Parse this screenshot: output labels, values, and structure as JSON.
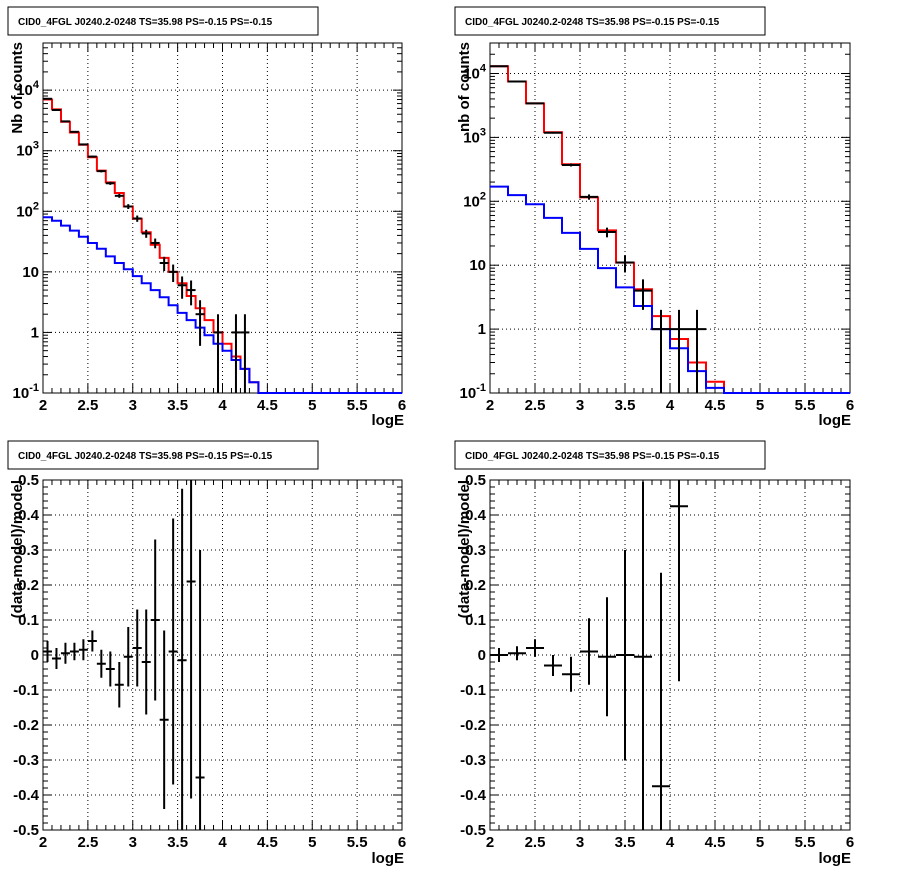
{
  "chart_data": [
    {
      "type": "line",
      "title": "CID0_4FGL J0240.2-0248 TS=35.98 PS=-0.15 PS=-0.15",
      "xlabel": "logE",
      "ylabel": "Nb of counts",
      "xlim": [
        2,
        6
      ],
      "ylim": [
        0.1,
        60000
      ],
      "yscale": "log",
      "grid": true,
      "x_ticks": [
        "2",
        "2.5",
        "3",
        "3.5",
        "4",
        "4.5",
        "5",
        "5.5",
        "6"
      ],
      "y_ticks": [
        {
          "value": 0.1,
          "label": "10^-1"
        },
        {
          "value": 1,
          "label": "1"
        },
        {
          "value": 10,
          "label": "10"
        },
        {
          "value": 100,
          "label": "10^2"
        },
        {
          "value": 1000,
          "label": "10^3"
        },
        {
          "value": 10000,
          "label": "10^4"
        }
      ],
      "bin_edges": [
        2,
        2.1,
        2.2,
        2.3,
        2.4,
        2.5,
        2.6,
        2.7,
        2.8,
        2.9,
        3.0,
        3.1,
        3.2,
        3.3,
        3.4,
        3.5,
        3.6,
        3.7,
        3.8,
        3.9,
        4.0,
        4.1,
        4.2,
        4.3,
        4.4,
        4.5,
        4.6,
        4.7,
        4.8,
        4.9,
        5.0,
        5.1,
        5.2,
        5.3,
        5.4,
        5.5,
        5.6,
        5.7,
        5.8,
        5.9,
        6.0
      ],
      "series": [
        {
          "color": "#ff0000",
          "kind": "step",
          "values": [
            7000,
            4800,
            3000,
            2000,
            1250,
            780,
            470,
            300,
            200,
            120,
            75,
            45,
            28,
            17,
            10,
            6.5,
            4,
            2.5,
            1.6,
            1.0,
            0.65,
            0.4,
            0.25,
            0.15,
            0.1,
            0.1,
            0.1,
            0.1,
            0.1,
            0.1,
            0.1,
            0.1,
            0.1,
            0.1,
            0.1,
            0.1,
            0.1,
            0.1,
            0.1,
            0.1
          ]
        },
        {
          "color": "#0000ff",
          "kind": "step",
          "values": [
            80,
            70,
            58,
            48,
            38,
            30,
            24,
            18,
            14,
            11,
            8.5,
            6.5,
            5,
            3.8,
            2.8,
            2.1,
            1.6,
            1.2,
            0.9,
            0.65,
            0.5,
            0.35,
            0.25,
            0.15,
            0.1,
            0.1,
            0.1,
            0.1,
            0.1,
            0.1,
            0.1,
            0.1,
            0.1,
            0.1,
            0.1,
            0.1,
            0.1,
            0.1,
            0.1,
            0.1
          ]
        },
        {
          "color": "#000000",
          "kind": "errorbar",
          "points": [
            {
              "x": 2.05,
              "y": 7200,
              "err": 85
            },
            {
              "x": 2.15,
              "y": 4700,
              "err": 69
            },
            {
              "x": 2.25,
              "y": 3050,
              "err": 55
            },
            {
              "x": 2.35,
              "y": 2050,
              "err": 45
            },
            {
              "x": 2.45,
              "y": 1270,
              "err": 36
            },
            {
              "x": 2.55,
              "y": 800,
              "err": 28
            },
            {
              "x": 2.65,
              "y": 460,
              "err": 21
            },
            {
              "x": 2.75,
              "y": 290,
              "err": 17
            },
            {
              "x": 2.85,
              "y": 180,
              "err": 13
            },
            {
              "x": 2.95,
              "y": 120,
              "err": 11
            },
            {
              "x": 3.05,
              "y": 76,
              "err": 9
            },
            {
              "x": 3.15,
              "y": 43,
              "err": 6.5
            },
            {
              "x": 3.25,
              "y": 30,
              "err": 5.5
            },
            {
              "x": 3.35,
              "y": 14,
              "err": 3.7
            },
            {
              "x": 3.45,
              "y": 10,
              "err": 3.2
            },
            {
              "x": 3.55,
              "y": 6,
              "err": 2.4
            },
            {
              "x": 3.65,
              "y": 5,
              "err": 2.2
            },
            {
              "x": 3.75,
              "y": 2,
              "err": 1.4
            },
            {
              "x": 3.95,
              "y": 1,
              "err": 1
            },
            {
              "x": 4.15,
              "y": 1,
              "err": 1
            },
            {
              "x": 4.25,
              "y": 1,
              "err": 1
            }
          ]
        }
      ]
    },
    {
      "type": "line",
      "title": "CID0_4FGL J0240.2-0248 TS=35.98 PS=-0.15 PS=-0.15",
      "xlabel": "logE",
      "ylabel": "nb of counts",
      "xlim": [
        2,
        6
      ],
      "ylim": [
        0.1,
        30000
      ],
      "yscale": "log",
      "grid": true,
      "x_ticks": [
        "2",
        "2.5",
        "3",
        "3.5",
        "4",
        "4.5",
        "5",
        "5.5",
        "6"
      ],
      "y_ticks": [
        {
          "value": 0.1,
          "label": "10^-1"
        },
        {
          "value": 1,
          "label": "1"
        },
        {
          "value": 10,
          "label": "10"
        },
        {
          "value": 100,
          "label": "10^2"
        },
        {
          "value": 1000,
          "label": "10^3"
        },
        {
          "value": 10000,
          "label": "10^4"
        }
      ],
      "bin_edges": [
        2,
        2.2,
        2.4,
        2.6,
        2.8,
        3.0,
        3.2,
        3.4,
        3.6,
        3.8,
        4.0,
        4.2,
        4.4,
        4.6,
        4.8,
        5.0,
        5.2,
        5.4,
        5.6,
        5.8,
        6.0
      ],
      "series": [
        {
          "color": "#ff0000",
          "kind": "step",
          "values": [
            13000,
            7500,
            3400,
            1200,
            380,
            115,
            35,
            11,
            4.2,
            1.6,
            0.7,
            0.3,
            0.15,
            0.1,
            0.1,
            0.1,
            0.1,
            0.1,
            0.1,
            0.1
          ]
        },
        {
          "color": "#0000ff",
          "kind": "step",
          "values": [
            170,
            125,
            90,
            55,
            32,
            18,
            9,
            4.5,
            2.3,
            1.0,
            0.5,
            0.22,
            0.12,
            0.1,
            0.1,
            0.1,
            0.1,
            0.1,
            0.1,
            0.1
          ]
        },
        {
          "color": "#000000",
          "kind": "errorbar",
          "points": [
            {
              "x": 2.1,
              "y": 13000,
              "err": 114
            },
            {
              "x": 2.3,
              "y": 7500,
              "err": 87
            },
            {
              "x": 2.5,
              "y": 3400,
              "err": 58
            },
            {
              "x": 2.7,
              "y": 1180,
              "err": 34
            },
            {
              "x": 2.9,
              "y": 370,
              "err": 19
            },
            {
              "x": 3.1,
              "y": 117,
              "err": 11
            },
            {
              "x": 3.3,
              "y": 33,
              "err": 5.7
            },
            {
              "x": 3.5,
              "y": 11,
              "err": 3.3
            },
            {
              "x": 3.7,
              "y": 4,
              "err": 2
            },
            {
              "x": 3.9,
              "y": 1,
              "err": 1
            },
            {
              "x": 4.1,
              "y": 1,
              "err": 1
            },
            {
              "x": 4.3,
              "y": 1,
              "err": 1
            }
          ]
        }
      ]
    },
    {
      "type": "scatter",
      "title": "CID0_4FGL J0240.2-0248 TS=35.98 PS=-0.15 PS=-0.15",
      "xlabel": "logE",
      "ylabel": "(data-model)/model",
      "xlim": [
        2,
        6
      ],
      "ylim": [
        -0.5,
        0.5
      ],
      "grid": true,
      "x_ticks": [
        "2",
        "2.5",
        "3",
        "3.5",
        "4",
        "4.5",
        "5",
        "5.5",
        "6"
      ],
      "y_ticks": [
        "-0.5",
        "-0.4",
        "-0.3",
        "-0.2",
        "-0.1",
        "0",
        "0.1",
        "0.2",
        "0.3",
        "0.4",
        "0.5"
      ],
      "y_tick_values": [
        -0.5,
        -0.4,
        -0.3,
        -0.2,
        -0.1,
        0,
        0.1,
        0.2,
        0.3,
        0.4,
        0.5
      ],
      "points": [
        {
          "x": 2.05,
          "y": 0.01,
          "err": 0.03,
          "xerr": 0.05
        },
        {
          "x": 2.15,
          "y": -0.01,
          "err": 0.03,
          "xerr": 0.05
        },
        {
          "x": 2.25,
          "y": 0.005,
          "err": 0.03,
          "xerr": 0.05
        },
        {
          "x": 2.35,
          "y": 0.01,
          "err": 0.025,
          "xerr": 0.05
        },
        {
          "x": 2.45,
          "y": 0.015,
          "err": 0.03,
          "xerr": 0.05
        },
        {
          "x": 2.55,
          "y": 0.04,
          "err": 0.03,
          "xerr": 0.05
        },
        {
          "x": 2.65,
          "y": -0.025,
          "err": 0.04,
          "xerr": 0.05
        },
        {
          "x": 2.75,
          "y": -0.04,
          "err": 0.05,
          "xerr": 0.05
        },
        {
          "x": 2.85,
          "y": -0.085,
          "err": 0.065,
          "xerr": 0.05
        },
        {
          "x": 2.95,
          "y": -0.005,
          "err": 0.085,
          "xerr": 0.05
        },
        {
          "x": 3.05,
          "y": 0.02,
          "err": 0.11,
          "xerr": 0.05
        },
        {
          "x": 3.15,
          "y": -0.02,
          "err": 0.15,
          "xerr": 0.05
        },
        {
          "x": 3.25,
          "y": 0.1,
          "err": 0.23,
          "xerr": 0.05
        },
        {
          "x": 3.35,
          "y": -0.185,
          "err": 0.255,
          "xerr": 0.05
        },
        {
          "x": 3.45,
          "y": 0.01,
          "err": 0.38,
          "xerr": 0.05
        },
        {
          "x": 3.55,
          "y": -0.015,
          "err": 0.49,
          "xerr": 0.05
        },
        {
          "x": 3.65,
          "y": 0.21,
          "err": 0.62,
          "xerr": 0.05
        },
        {
          "x": 3.75,
          "y": -0.35,
          "err": 0.65,
          "xerr": 0.05
        }
      ]
    },
    {
      "type": "scatter",
      "title": "CID0_4FGL J0240.2-0248 TS=35.98 PS=-0.15 PS=-0.15",
      "xlabel": "logE",
      "ylabel": "(data-model)/model",
      "xlim": [
        2,
        6
      ],
      "ylim": [
        -0.5,
        0.5
      ],
      "grid": true,
      "x_ticks": [
        "2",
        "2.5",
        "3",
        "3.5",
        "4",
        "4.5",
        "5",
        "5.5",
        "6"
      ],
      "y_ticks": [
        "-0.5",
        "-0.4",
        "-0.3",
        "-0.2",
        "-0.1",
        "0",
        "0.1",
        "0.2",
        "0.3",
        "0.4",
        "0.5"
      ],
      "y_tick_values": [
        -0.5,
        -0.4,
        -0.3,
        -0.2,
        -0.1,
        0,
        0.1,
        0.2,
        0.3,
        0.4,
        0.5
      ],
      "points": [
        {
          "x": 2.1,
          "y": 0.0,
          "err": 0.02,
          "xerr": 0.1
        },
        {
          "x": 2.3,
          "y": 0.005,
          "err": 0.02,
          "xerr": 0.1
        },
        {
          "x": 2.5,
          "y": 0.02,
          "err": 0.025,
          "xerr": 0.1
        },
        {
          "x": 2.7,
          "y": -0.03,
          "err": 0.03,
          "xerr": 0.1
        },
        {
          "x": 2.9,
          "y": -0.055,
          "err": 0.05,
          "xerr": 0.1
        },
        {
          "x": 3.1,
          "y": 0.01,
          "err": 0.095,
          "xerr": 0.1
        },
        {
          "x": 3.3,
          "y": -0.005,
          "err": 0.17,
          "xerr": 0.1
        },
        {
          "x": 3.5,
          "y": 0.0,
          "err": 0.3,
          "xerr": 0.1
        },
        {
          "x": 3.7,
          "y": -0.005,
          "err": 0.5,
          "xerr": 0.1
        },
        {
          "x": 3.9,
          "y": -0.375,
          "err": 0.61,
          "xerr": 0.1
        },
        {
          "x": 4.1,
          "y": 0.425,
          "err": 0.5,
          "xerr": 0.1
        }
      ]
    }
  ]
}
